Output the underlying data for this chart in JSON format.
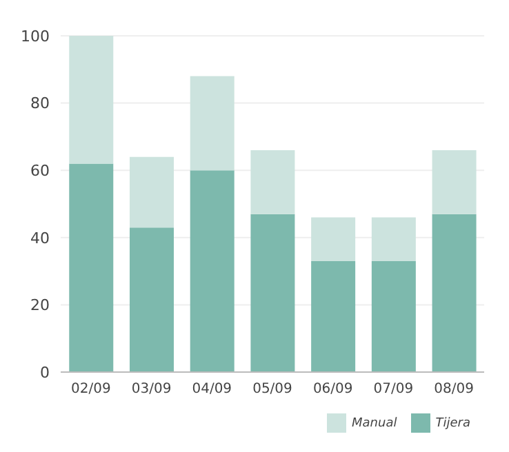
{
  "chart_data": {
    "type": "bar",
    "stacked": true,
    "categories": [
      "02/09",
      "03/09",
      "04/09",
      "05/09",
      "06/09",
      "07/09",
      "08/09"
    ],
    "series": [
      {
        "name": "Tijera",
        "color": "#7db9ad",
        "values": [
          62,
          43,
          60,
          47,
          33,
          33,
          47
        ]
      },
      {
        "name": "Manual",
        "color": "#cce3de",
        "values": [
          38,
          21,
          28,
          19,
          13,
          13,
          19
        ]
      }
    ],
    "ylim": [
      0,
      100
    ],
    "yticks": [
      0,
      20,
      40,
      60,
      80,
      100
    ],
    "grid": "y",
    "legend": "bottom right"
  }
}
